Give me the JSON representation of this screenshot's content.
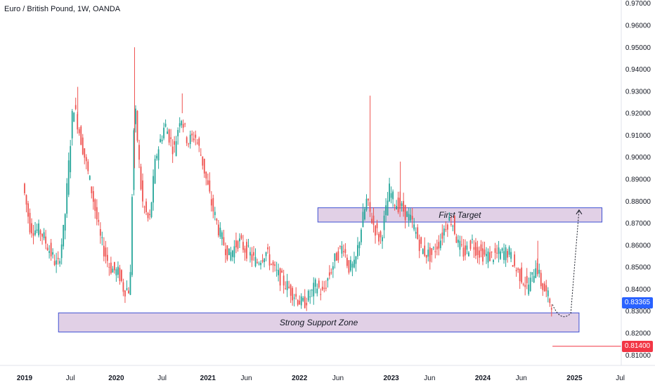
{
  "header": {
    "title": "Euro / British Pound, 1W, OANDA"
  },
  "chart_data": {
    "type": "candlestick",
    "x": [
      "2019",
      "Jul",
      "2020",
      "Jul",
      "2021",
      "Jun",
      "2022",
      "Jun",
      "2023",
      "Jun",
      "2024",
      "Jun",
      "2025",
      "Jul"
    ],
    "y_ticks": [
      "0.97000",
      "0.96000",
      "0.95000",
      "0.94000",
      "0.93000",
      "0.92000",
      "0.91000",
      "0.90000",
      "0.89000",
      "0.88000",
      "0.87000",
      "0.86000",
      "0.85000",
      "0.84000",
      "0.83000",
      "0.82000",
      "0.81000"
    ],
    "ylim": [
      0.8053,
      0.9715
    ],
    "grid": false,
    "colors": {
      "up": "#26a69a",
      "down": "#ef5350",
      "zone_fill": "#e1d0e6",
      "zone_border": "#3f51d3",
      "text": "#131722"
    },
    "price_path": [
      [
        2019.0,
        0.888
      ],
      [
        2019.08,
        0.868
      ],
      [
        2019.2,
        0.866
      ],
      [
        2019.32,
        0.855
      ],
      [
        2019.38,
        0.85
      ],
      [
        2019.45,
        0.868
      ],
      [
        2019.55,
        0.925
      ],
      [
        2019.65,
        0.905
      ],
      [
        2019.75,
        0.885
      ],
      [
        2019.85,
        0.862
      ],
      [
        2019.95,
        0.85
      ],
      [
        2020.05,
        0.847
      ],
      [
        2020.1,
        0.84
      ],
      [
        2020.17,
        0.84
      ],
      [
        2020.19,
        0.88
      ],
      [
        2020.22,
        0.925
      ],
      [
        2020.3,
        0.88
      ],
      [
        2020.38,
        0.87
      ],
      [
        2020.45,
        0.9
      ],
      [
        2020.55,
        0.915
      ],
      [
        2020.65,
        0.903
      ],
      [
        2020.72,
        0.92
      ],
      [
        2020.8,
        0.907
      ],
      [
        2020.88,
        0.91
      ],
      [
        2020.95,
        0.9
      ],
      [
        2021.05,
        0.88
      ],
      [
        2021.15,
        0.865
      ],
      [
        2021.25,
        0.855
      ],
      [
        2021.35,
        0.862
      ],
      [
        2021.45,
        0.857
      ],
      [
        2021.55,
        0.852
      ],
      [
        2021.65,
        0.857
      ],
      [
        2021.75,
        0.848
      ],
      [
        2021.85,
        0.843
      ],
      [
        2021.95,
        0.838
      ],
      [
        2022.05,
        0.833
      ],
      [
        2022.15,
        0.838
      ],
      [
        2022.2,
        0.842
      ],
      [
        2022.27,
        0.838
      ],
      [
        2022.33,
        0.845
      ],
      [
        2022.42,
        0.855
      ],
      [
        2022.5,
        0.86
      ],
      [
        2022.55,
        0.85
      ],
      [
        2022.62,
        0.85
      ],
      [
        2022.7,
        0.87
      ],
      [
        2022.75,
        0.88
      ],
      [
        2022.82,
        0.87
      ],
      [
        2022.9,
        0.862
      ],
      [
        2022.96,
        0.875
      ],
      [
        2023.0,
        0.885
      ],
      [
        2023.05,
        0.88
      ],
      [
        2023.15,
        0.876
      ],
      [
        2023.25,
        0.87
      ],
      [
        2023.35,
        0.858
      ],
      [
        2023.45,
        0.855
      ],
      [
        2023.55,
        0.862
      ],
      [
        2023.62,
        0.87
      ],
      [
        2023.68,
        0.872
      ],
      [
        2023.75,
        0.86
      ],
      [
        2023.82,
        0.856
      ],
      [
        2023.9,
        0.862
      ],
      [
        2023.95,
        0.858
      ],
      [
        2024.05,
        0.855
      ],
      [
        2024.12,
        0.855
      ],
      [
        2024.2,
        0.856
      ],
      [
        2024.3,
        0.857
      ],
      [
        2024.38,
        0.849
      ],
      [
        2024.45,
        0.845
      ],
      [
        2024.5,
        0.841
      ],
      [
        2024.55,
        0.844
      ],
      [
        2024.6,
        0.852
      ],
      [
        2024.65,
        0.843
      ],
      [
        2024.72,
        0.837
      ],
      [
        2024.76,
        0.834
      ]
    ],
    "spikes": [
      [
        2020.2,
        0.95
      ],
      [
        2022.77,
        0.928
      ],
      [
        2019.58,
        0.932
      ],
      [
        2020.72,
        0.929
      ],
      [
        2023.1,
        0.898
      ],
      [
        2024.6,
        0.862
      ]
    ],
    "current_price": {
      "label": "0.83365",
      "value": 0.83365,
      "color": "#2962ff"
    },
    "level_line": {
      "label": "0.81400",
      "value": 0.814,
      "color": "#f23645",
      "from_year": 2024.76
    },
    "zones": [
      {
        "label": "First Target",
        "from": 2022.2,
        "to": 2025.3,
        "bottom": 0.8705,
        "top": 0.877
      },
      {
        "label": "Strong Support Zone",
        "from": 2019.37,
        "to": 2025.05,
        "bottom": 0.8205,
        "top": 0.8292
      }
    ],
    "projection": [
      [
        2024.76,
        0.833
      ],
      [
        2024.85,
        0.8245
      ],
      [
        2024.96,
        0.829
      ],
      [
        2025.0,
        0.85
      ],
      [
        2025.05,
        0.876
      ]
    ]
  }
}
